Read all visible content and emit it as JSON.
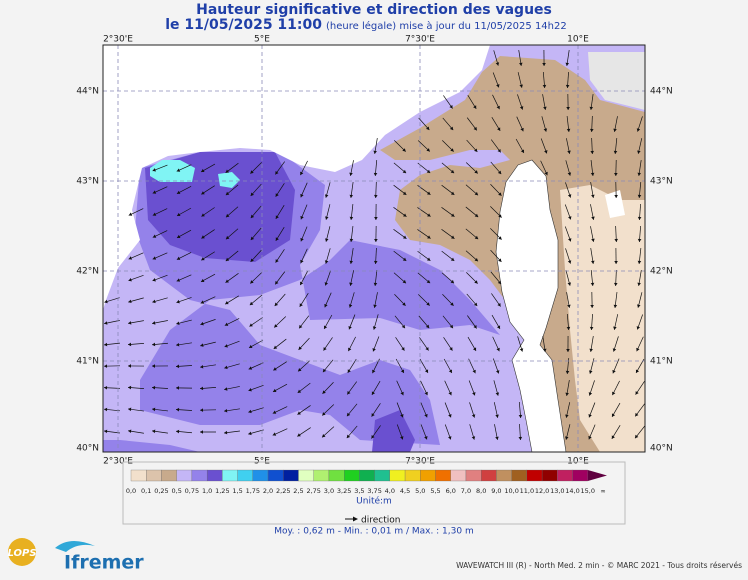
{
  "header": {
    "title": "Hauteur significative et direction des vagues",
    "date": "le 11/05/2025 11:00",
    "update": "(heure légale) mise à jour du 11/05/2025 14h22"
  },
  "map": {
    "lon_labels": [
      "2°30'E",
      "5°E",
      "7°30'E",
      "10°E"
    ],
    "lat_labels": [
      "44°N",
      "43°N",
      "42°N",
      "41°N",
      "40°N"
    ]
  },
  "legend": {
    "labels": [
      "0,0",
      "0,1",
      "0,25",
      "0,5",
      "0,75",
      "1,0",
      "1,25",
      "1,5",
      "1,75",
      "2,0",
      "2,25",
      "2,5",
      "2,75",
      "3,0",
      "3,25",
      "3,5",
      "3,75",
      "4,0",
      "4,5",
      "5,0",
      "5,5",
      "6,0",
      "7,0",
      "8,0",
      "9,0",
      "10,0",
      "11,0",
      "12,0",
      "13,0",
      "14,0",
      "15,0",
      "∞"
    ],
    "colors": [
      "#f2e0cc",
      "#dcc3ab",
      "#c8aa8c",
      "#c4b6f6",
      "#9482ea",
      "#6a50d0",
      "#80f4f4",
      "#40d0f0",
      "#2090e8",
      "#1050d0",
      "#0020a0",
      "#e0ffc0",
      "#b0f070",
      "#70e040",
      "#20d020",
      "#10b050",
      "#20c090",
      "#f0f020",
      "#f0d020",
      "#f0a000",
      "#f07000",
      "#f0c0c0",
      "#e08080",
      "#d04040",
      "#c09060",
      "#a06020",
      "#c00000",
      "#900000",
      "#c02060",
      "#a00060",
      "#600040"
    ],
    "unit": "Unité:m",
    "direction": "direction",
    "stats": "Moy. : 0,62 m  -  Min. : 0,01 m / Max. : 1,30 m"
  },
  "footer": {
    "lops": "LOPS",
    "ifremer": "Ifremer",
    "credits": "WAVEWATCH III (R) - North Med. 2 min - © MARC 2021 - Tous droits réservés"
  }
}
